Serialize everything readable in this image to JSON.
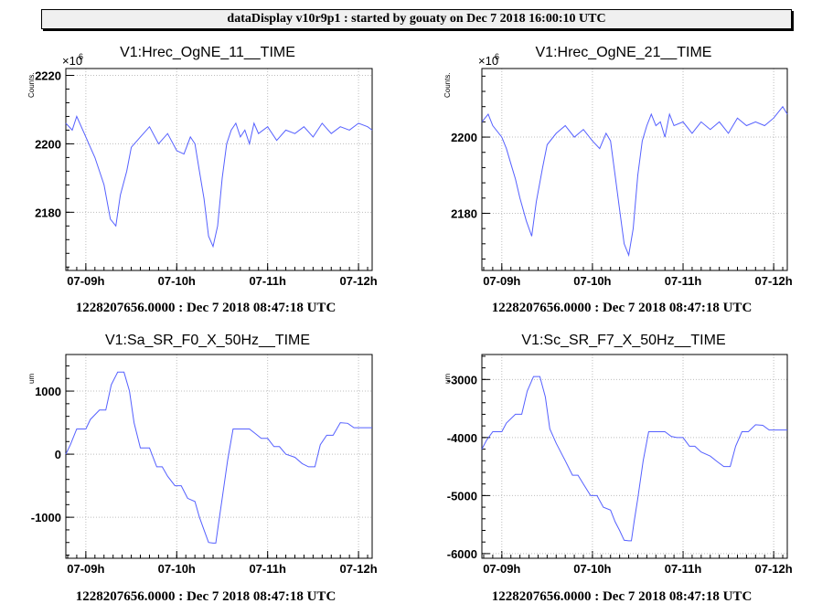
{
  "window": {
    "title": "dataDisplay v10r9p1 : started by gouaty on Dec  7 2018 16:00:10 UTC"
  },
  "colors": {
    "line": "#5560ff",
    "grid": "#bdbdbd",
    "axis": "#000000",
    "background": "#ffffff"
  },
  "chart_data": [
    {
      "type": "line",
      "title": "V1:Hrec_OgNE_11__TIME",
      "ylabel": "Counts.",
      "exponent": "×10",
      "exponent_power": "6",
      "x_ticks": [
        "07-09h",
        "07-10h",
        "07-11h",
        "07-12h"
      ],
      "x_tick_hours": [
        9,
        10,
        11,
        12
      ],
      "xlim": [
        8.78,
        12.15
      ],
      "ylim": [
        2163,
        2222
      ],
      "y_ticks": [
        2180,
        2200,
        2220
      ],
      "grid": true,
      "footer": "1228207656.0000 : Dec  7 2018 08:47:18 UTC",
      "series": [
        {
          "x": [
            8.78,
            8.85,
            8.9,
            9.0,
            9.05,
            9.1,
            9.15,
            9.2,
            9.27,
            9.33,
            9.38,
            9.45,
            9.5,
            9.6,
            9.7,
            9.8,
            9.9,
            10.0,
            10.08,
            10.15,
            10.2,
            10.25,
            10.3,
            10.35,
            10.4,
            10.45,
            10.5,
            10.55,
            10.6,
            10.65,
            10.7,
            10.75,
            10.8,
            10.85,
            10.9,
            11.0,
            11.1,
            11.2,
            11.3,
            11.4,
            11.5,
            11.6,
            11.7,
            11.8,
            11.9,
            12.0,
            12.1,
            12.15
          ],
          "y": [
            2206,
            2204,
            2208,
            2202,
            2199,
            2196,
            2192,
            2188,
            2178,
            2176,
            2185,
            2192,
            2199,
            2202,
            2205,
            2200,
            2203,
            2198,
            2197,
            2202,
            2200,
            2192,
            2184,
            2173,
            2170,
            2176,
            2190,
            2200,
            2204,
            2206,
            2202,
            2204,
            2200,
            2206,
            2203,
            2205,
            2201,
            2204,
            2203,
            2205,
            2202,
            2206,
            2203,
            2205,
            2204,
            2206,
            2205,
            2204
          ]
        }
      ]
    },
    {
      "type": "line",
      "title": "V1:Hrec_OgNE_21__TIME",
      "ylabel": "Counts.",
      "exponent": "×10",
      "exponent_power": "6",
      "x_ticks": [
        "07-09h",
        "07-10h",
        "07-11h",
        "07-12h"
      ],
      "x_tick_hours": [
        9,
        10,
        11,
        12
      ],
      "xlim": [
        8.78,
        12.15
      ],
      "ylim": [
        2165,
        2218
      ],
      "y_ticks": [
        2180,
        2200
      ],
      "grid": true,
      "footer": "1228207656.0000 : Dec  7 2018 08:47:18 UTC",
      "series": [
        {
          "x": [
            8.78,
            8.85,
            8.9,
            9.0,
            9.05,
            9.1,
            9.15,
            9.2,
            9.27,
            9.33,
            9.38,
            9.45,
            9.5,
            9.6,
            9.7,
            9.8,
            9.9,
            10.0,
            10.08,
            10.15,
            10.2,
            10.25,
            10.3,
            10.35,
            10.4,
            10.45,
            10.5,
            10.55,
            10.6,
            10.65,
            10.7,
            10.75,
            10.8,
            10.85,
            10.9,
            11.0,
            11.1,
            11.2,
            11.3,
            11.4,
            11.5,
            11.6,
            11.7,
            11.8,
            11.9,
            12.0,
            12.1,
            12.15
          ],
          "y": [
            2204,
            2206,
            2203,
            2200,
            2197,
            2193,
            2189,
            2184,
            2178,
            2174,
            2183,
            2192,
            2198,
            2201,
            2203,
            2200,
            2202,
            2199,
            2197,
            2201,
            2199,
            2190,
            2181,
            2172,
            2169,
            2176,
            2190,
            2199,
            2203,
            2206,
            2203,
            2204,
            2200,
            2206,
            2203,
            2204,
            2201,
            2204,
            2202,
            2204,
            2201,
            2205,
            2203,
            2204,
            2203,
            2205,
            2208,
            2206
          ]
        }
      ]
    },
    {
      "type": "line",
      "title": "V1:Sa_SR_F0_X_50Hz__TIME",
      "ylabel": "um",
      "exponent": "",
      "exponent_power": "",
      "x_ticks": [
        "07-09h",
        "07-10h",
        "07-11h",
        "07-12h"
      ],
      "x_tick_hours": [
        9,
        10,
        11,
        12
      ],
      "xlim": [
        8.78,
        12.15
      ],
      "ylim": [
        -1650,
        1580
      ],
      "y_ticks": [
        -1000,
        0,
        1000
      ],
      "grid": true,
      "footer": "1228207656.0000 : Dec  7 2018 08:47:18 UTC",
      "series": [
        {
          "x": [
            8.78,
            8.83,
            8.9,
            9.0,
            9.05,
            9.15,
            9.22,
            9.28,
            9.35,
            9.42,
            9.48,
            9.53,
            9.6,
            9.7,
            9.78,
            9.84,
            9.9,
            9.98,
            10.05,
            10.12,
            10.2,
            10.25,
            10.3,
            10.35,
            10.4,
            10.43,
            10.46,
            10.5,
            10.56,
            10.62,
            10.7,
            10.8,
            10.87,
            10.93,
            11.0,
            11.07,
            11.13,
            11.2,
            11.3,
            11.38,
            11.45,
            11.52,
            11.58,
            11.65,
            11.72,
            11.8,
            11.88,
            11.95,
            12.0,
            12.05,
            12.1,
            12.15
          ],
          "y": [
            0,
            150,
            400,
            400,
            550,
            700,
            700,
            1100,
            1300,
            1300,
            1000,
            500,
            100,
            100,
            -200,
            -200,
            -350,
            -500,
            -500,
            -700,
            -750,
            -1000,
            -1200,
            -1400,
            -1410,
            -1410,
            -1100,
            -700,
            -100,
            400,
            400,
            400,
            320,
            250,
            250,
            120,
            120,
            0,
            -50,
            -150,
            -200,
            -200,
            150,
            300,
            300,
            500,
            490,
            420,
            420,
            420,
            420,
            420
          ]
        }
      ]
    },
    {
      "type": "line",
      "title": "V1:Sc_SR_F7_X_50Hz__TIME",
      "ylabel": "um",
      "exponent": "",
      "exponent_power": "",
      "x_ticks": [
        "07-09h",
        "07-10h",
        "07-11h",
        "07-12h"
      ],
      "x_tick_hours": [
        9,
        10,
        11,
        12
      ],
      "xlim": [
        8.78,
        12.15
      ],
      "ylim": [
        -6080,
        -2570
      ],
      "y_ticks": [
        -6000,
        -5000,
        -4000,
        -3000
      ],
      "grid": true,
      "footer": "1228207656.0000 : Dec  7 2018 08:47:18 UTC",
      "series": [
        {
          "x": [
            8.78,
            8.83,
            8.9,
            9.0,
            9.05,
            9.15,
            9.22,
            9.28,
            9.35,
            9.42,
            9.48,
            9.53,
            9.6,
            9.7,
            9.78,
            9.84,
            9.9,
            9.98,
            10.05,
            10.12,
            10.2,
            10.25,
            10.3,
            10.35,
            10.4,
            10.43,
            10.46,
            10.5,
            10.56,
            10.62,
            10.7,
            10.8,
            10.87,
            10.93,
            11.0,
            11.07,
            11.13,
            11.2,
            11.3,
            11.38,
            11.45,
            11.52,
            11.58,
            11.65,
            11.72,
            11.8,
            11.88,
            11.95,
            12.0,
            12.05,
            12.1,
            12.15
          ],
          "y": [
            -4200,
            -4050,
            -3900,
            -3900,
            -3750,
            -3600,
            -3600,
            -3200,
            -2950,
            -2950,
            -3300,
            -3850,
            -4100,
            -4400,
            -4650,
            -4650,
            -4800,
            -5000,
            -5000,
            -5200,
            -5250,
            -5450,
            -5600,
            -5770,
            -5780,
            -5780,
            -5450,
            -5050,
            -4400,
            -3900,
            -3900,
            -3900,
            -3980,
            -4000,
            -4000,
            -4150,
            -4150,
            -4250,
            -4320,
            -4420,
            -4500,
            -4500,
            -4150,
            -3900,
            -3900,
            -3780,
            -3790,
            -3870,
            -3870,
            -3870,
            -3870,
            -3870
          ]
        }
      ]
    }
  ]
}
